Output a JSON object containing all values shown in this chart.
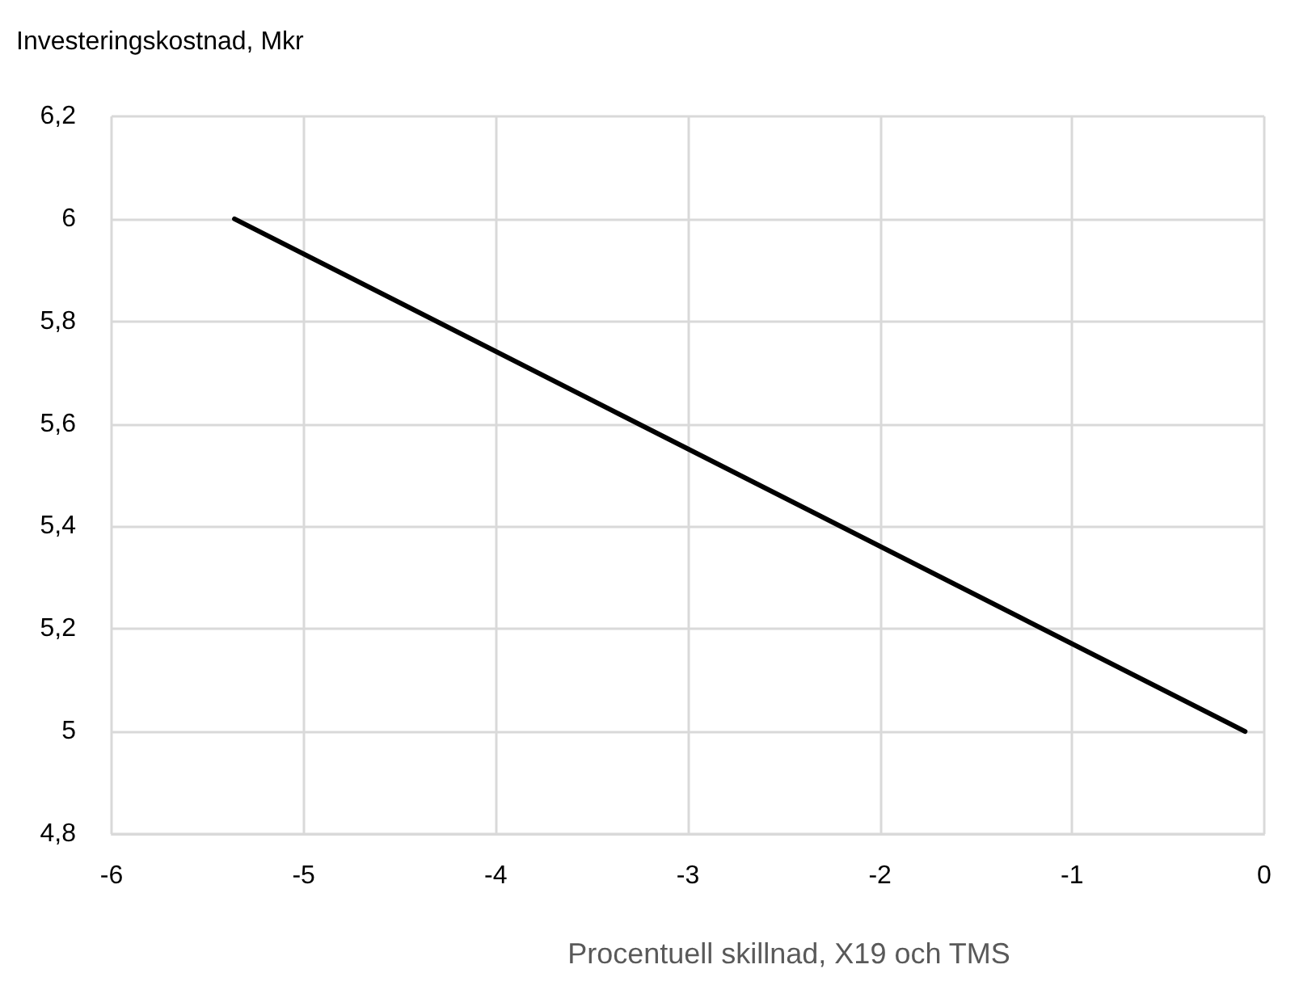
{
  "chart_data": {
    "type": "line",
    "ylabel": "Investeringskostnad, Mkr",
    "xlabel": "Procentuell skillnad, X19 och TMS",
    "x": [
      -5.36,
      -0.1
    ],
    "series": [
      {
        "color": "#000000",
        "values": [
          6,
          5
        ]
      }
    ],
    "xlim": [
      -6,
      0
    ],
    "xticks": [
      -6,
      -5,
      -4,
      -3,
      -2,
      -1,
      0
    ],
    "ylim": [
      4.8,
      6.2
    ],
    "yticks": [
      {
        "value": 4.8,
        "label": "4,8"
      },
      {
        "value": 5,
        "label": "5"
      },
      {
        "value": 5.2,
        "label": "5,2"
      },
      {
        "value": 5.4,
        "label": "5,4"
      },
      {
        "value": 5.6,
        "label": "5,6"
      },
      {
        "value": 5.8,
        "label": "5,8"
      },
      {
        "value": 6,
        "label": "6"
      },
      {
        "value": 6.2,
        "label": "6,2"
      }
    ],
    "grid": true,
    "marker": "none",
    "line_style": "solid"
  }
}
